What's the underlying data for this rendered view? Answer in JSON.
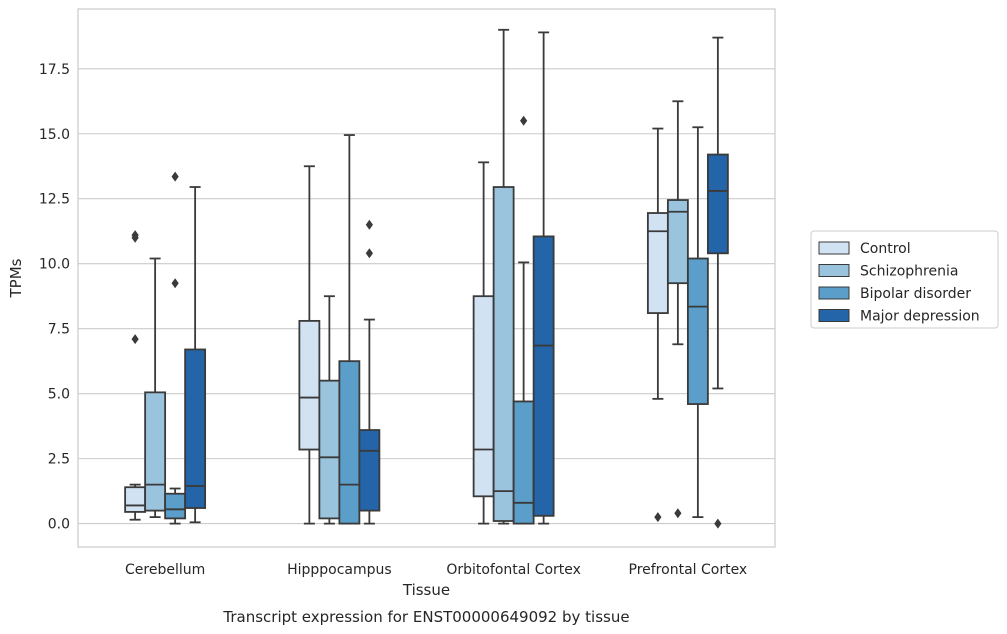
{
  "chart_data": {
    "type": "box",
    "title": "",
    "caption": "Transcript expression for ENST00000649092 by tissue",
    "xlabel": "Tissue",
    "ylabel": "TPMs",
    "ylim": [
      -0.9,
      19.8
    ],
    "yticks": [
      "0.0",
      "2.5",
      "5.0",
      "7.5",
      "10.0",
      "12.5",
      "15.0",
      "17.5"
    ],
    "grid": true,
    "legend_position": "right",
    "categories": [
      "Cerebellum",
      "Hipppocampus",
      "Orbitofontal Cortex",
      "Prefrontal Cortex"
    ],
    "series": [
      {
        "name": "Control",
        "color": "#d1e2f3",
        "boxes": [
          {
            "whisker_low": 0.15,
            "q1": 0.45,
            "median": 0.7,
            "q3": 1.4,
            "whisker_high": 1.5,
            "outliers": [
              11.0,
              11.1,
              7.1
            ]
          },
          {
            "whisker_low": 0.0,
            "q1": 2.85,
            "median": 4.85,
            "q3": 7.8,
            "whisker_high": 13.75,
            "outliers": []
          },
          {
            "whisker_low": 0.0,
            "q1": 1.05,
            "median": 2.85,
            "q3": 8.75,
            "whisker_high": 13.9,
            "outliers": []
          },
          {
            "whisker_low": 4.8,
            "q1": 8.1,
            "median": 11.25,
            "q3": 11.95,
            "whisker_high": 15.2,
            "outliers": [
              0.25
            ]
          }
        ]
      },
      {
        "name": "Schizophrenia",
        "color": "#9ac3dd",
        "boxes": [
          {
            "whisker_low": 0.25,
            "q1": 0.5,
            "median": 1.5,
            "q3": 5.05,
            "whisker_high": 10.2,
            "outliers": []
          },
          {
            "whisker_low": 0.0,
            "q1": 0.2,
            "median": 2.55,
            "q3": 5.5,
            "whisker_high": 8.75,
            "outliers": []
          },
          {
            "whisker_low": 0.0,
            "q1": 0.1,
            "median": 1.25,
            "q3": 12.95,
            "whisker_high": 19.0,
            "outliers": []
          },
          {
            "whisker_low": 6.9,
            "q1": 9.25,
            "median": 12.0,
            "q3": 12.45,
            "whisker_high": 16.25,
            "outliers": [
              0.4
            ]
          }
        ]
      },
      {
        "name": "Bipolar disorder",
        "color": "#5a9ec9",
        "boxes": [
          {
            "whisker_low": 0.0,
            "q1": 0.2,
            "median": 0.55,
            "q3": 1.15,
            "whisker_high": 1.35,
            "outliers": [
              13.35,
              9.25
            ]
          },
          {
            "whisker_low": 0.0,
            "q1": 0.0,
            "median": 1.5,
            "q3": 6.25,
            "whisker_high": 14.95,
            "outliers": []
          },
          {
            "whisker_low": 0.0,
            "q1": 0.0,
            "median": 0.8,
            "q3": 4.7,
            "whisker_high": 10.05,
            "outliers": [
              15.5
            ]
          },
          {
            "whisker_low": 0.25,
            "q1": 4.6,
            "median": 8.35,
            "q3": 10.2,
            "whisker_high": 15.25,
            "outliers": []
          }
        ]
      },
      {
        "name": "Major depression",
        "color": "#2464a8",
        "boxes": [
          {
            "whisker_low": 0.05,
            "q1": 0.6,
            "median": 1.45,
            "q3": 6.7,
            "whisker_high": 12.95,
            "outliers": []
          },
          {
            "whisker_low": 0.0,
            "q1": 0.5,
            "median": 2.8,
            "q3": 3.6,
            "whisker_high": 7.85,
            "outliers": [
              11.5,
              10.4
            ]
          },
          {
            "whisker_low": 0.0,
            "q1": 0.3,
            "median": 6.85,
            "q3": 11.05,
            "whisker_high": 18.9,
            "outliers": []
          },
          {
            "whisker_low": 5.2,
            "q1": 10.4,
            "median": 12.8,
            "q3": 14.2,
            "whisker_high": 18.7,
            "outliers": [
              0.0
            ]
          }
        ]
      }
    ]
  }
}
